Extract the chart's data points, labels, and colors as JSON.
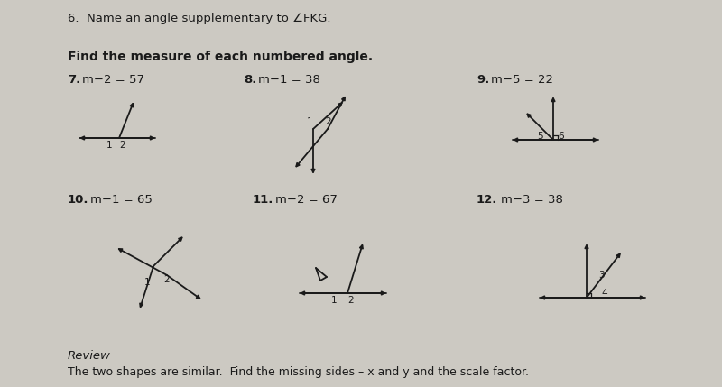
{
  "bg_color": "#ccc9c2",
  "title_top": "6.  Name an angle supplementary to ∠FKG.",
  "section_title": "Find the measure of each numbered angle.",
  "review_title": "Review",
  "review_text": "The two shapes are similar.  Find the missing sides – x and y and the scale factor.",
  "font_color": "#1a1a1a",
  "line_color": "#1a1a1a",
  "p7_label": "m−2 = 57",
  "p8_label": "m−1 = 38",
  "p9_label": "m−5 = 22",
  "p10_label": "m−1 = 65",
  "p11_label": "m−2 = 67",
  "p12_label": "m−3 = 38"
}
